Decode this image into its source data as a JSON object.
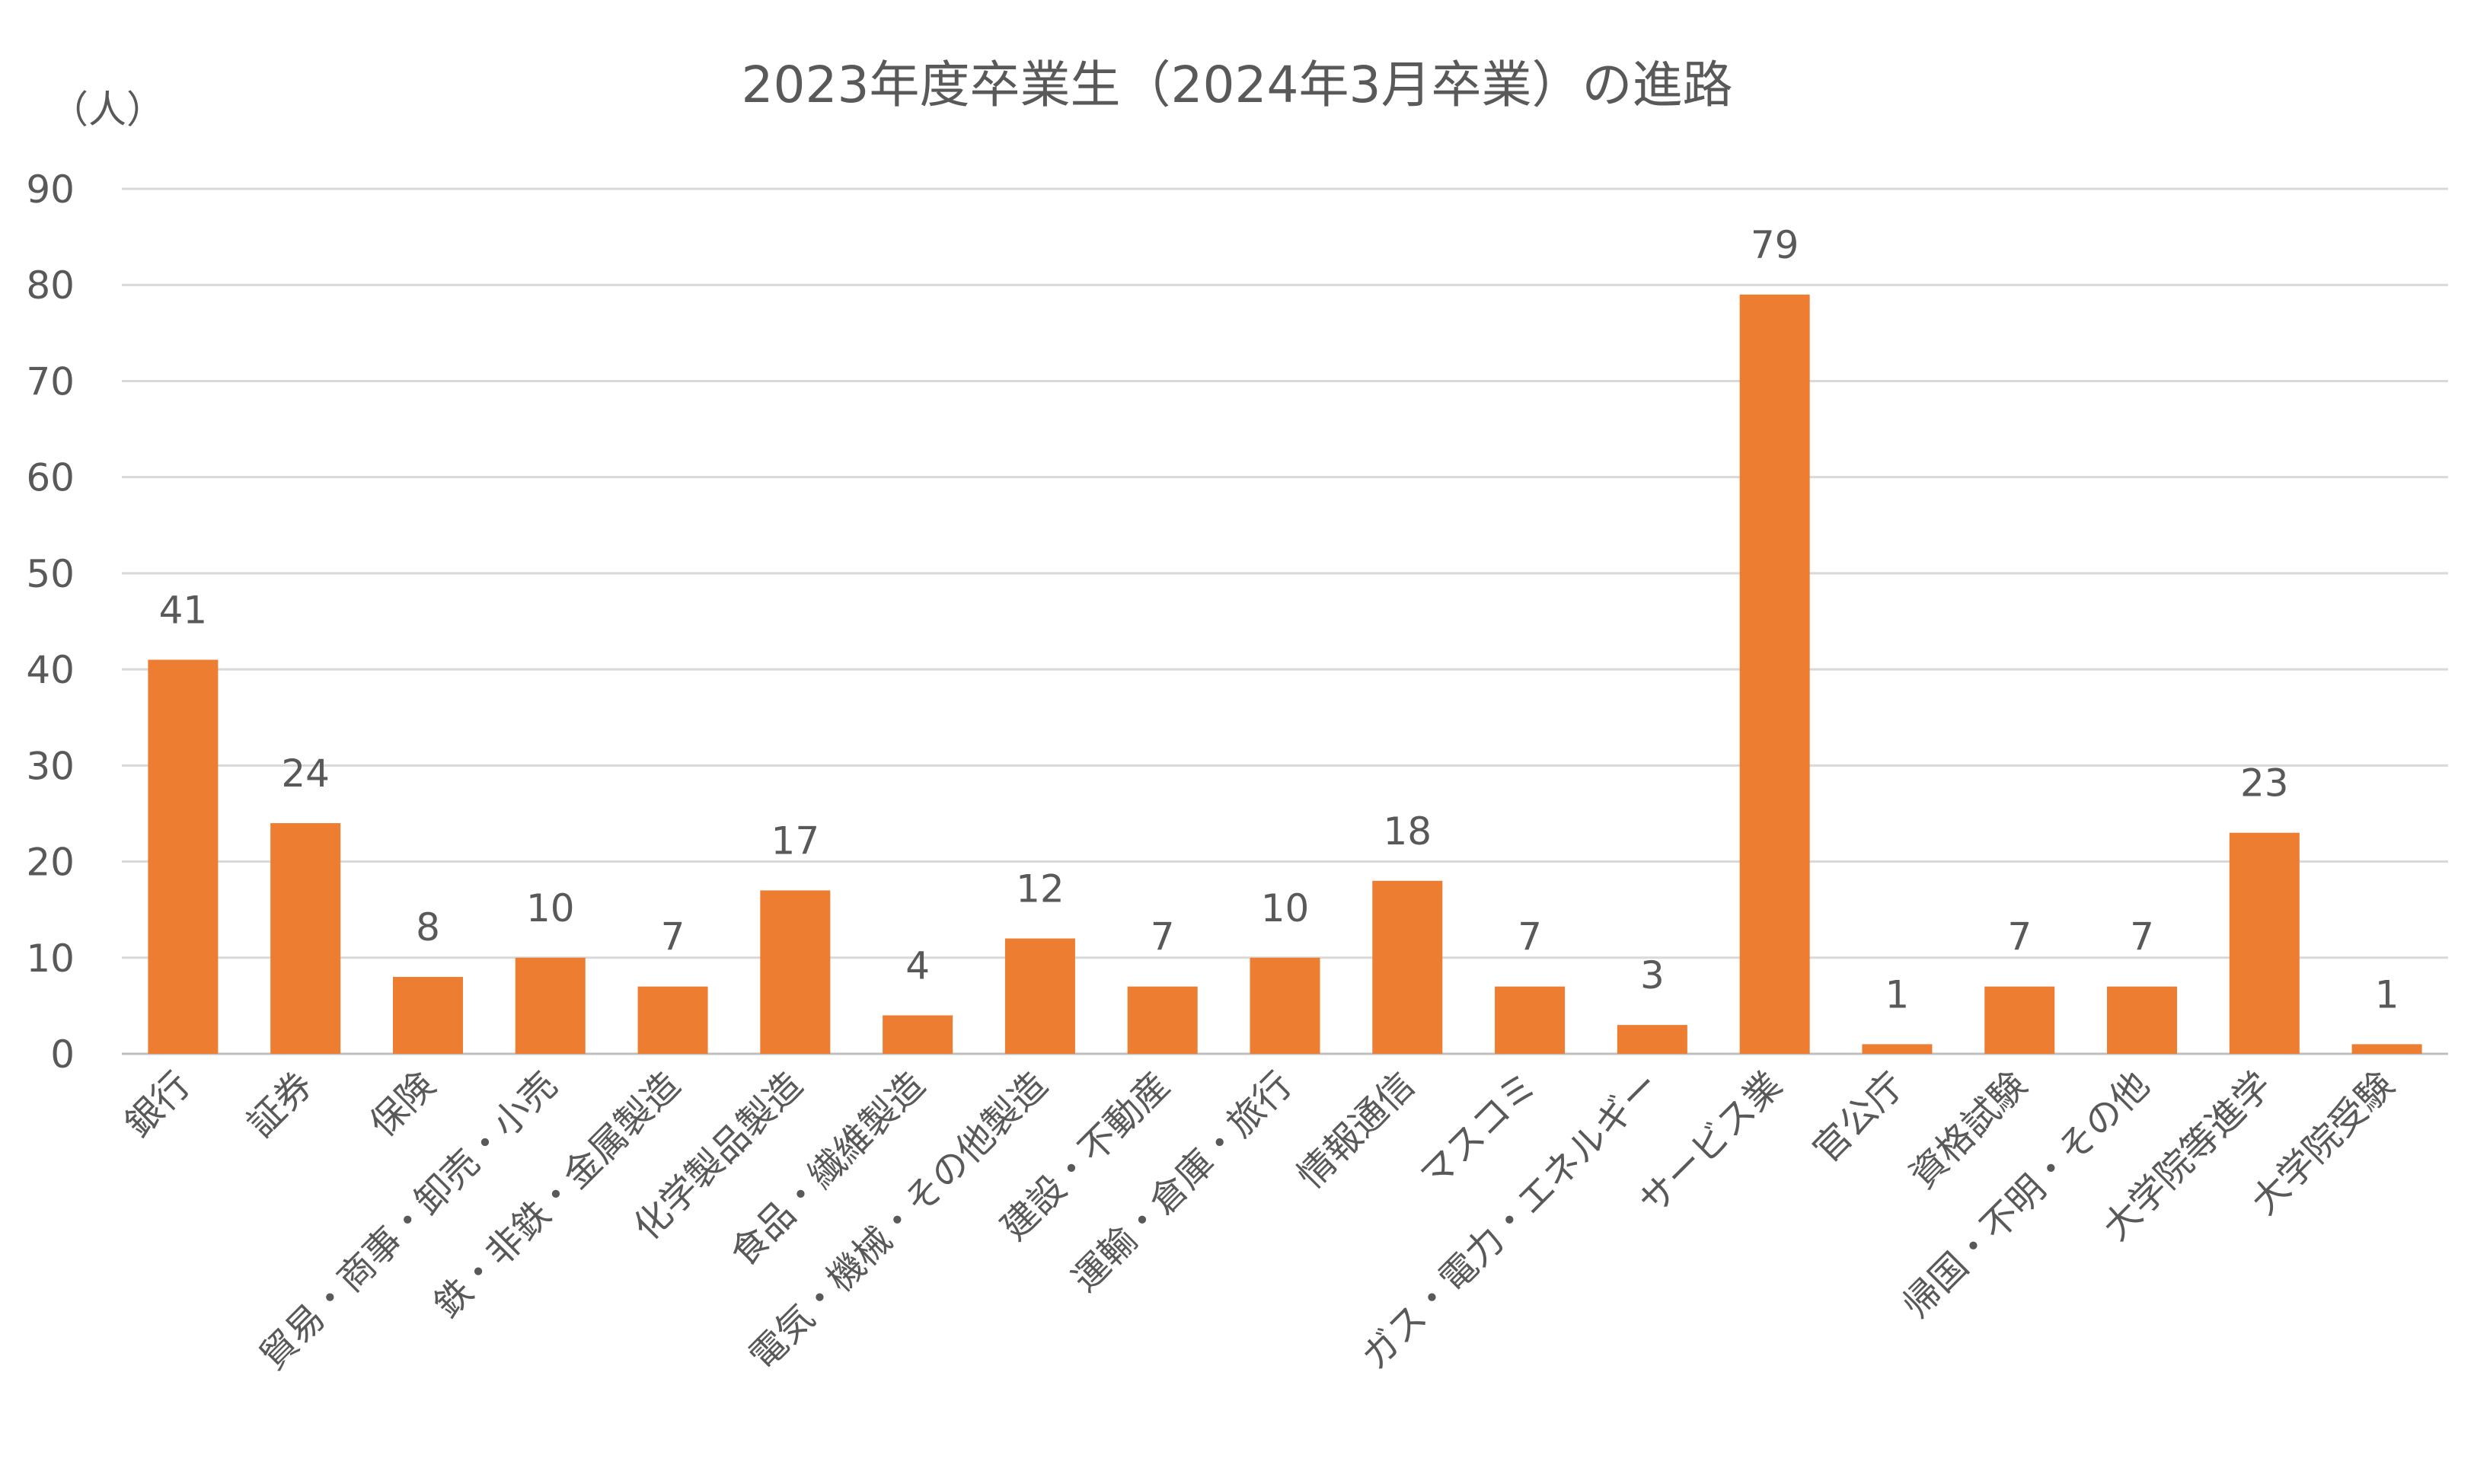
{
  "chart_data": {
    "type": "bar",
    "title": "2023年度卒業生（2024年3月卒業）の進路",
    "ylabel": "（人）",
    "xlabel": "",
    "ylim": [
      0,
      90
    ],
    "yticks": [
      0,
      10,
      20,
      30,
      40,
      50,
      60,
      70,
      80,
      90
    ],
    "grid": true,
    "legend": "none",
    "bar_color": "#ED7D31",
    "categories": [
      "銀行",
      "証券",
      "保険",
      "貿易・商事・卸売・小売",
      "鉄・非鉄・金属製造",
      "化学製品製造",
      "食品・繊維製造",
      "電気・機械・その他製造",
      "建設・不動産",
      "運輸・倉庫・旅行",
      "情報通信",
      "マスコミ",
      "ガス・電力・エネルギー",
      "サービス業",
      "官公庁",
      "資格試験",
      "帰国・不明・その他",
      "大学院等進学",
      "大学院受験"
    ],
    "values": [
      41,
      24,
      8,
      10,
      7,
      17,
      4,
      12,
      7,
      10,
      18,
      7,
      3,
      79,
      1,
      7,
      7,
      23,
      1
    ]
  }
}
